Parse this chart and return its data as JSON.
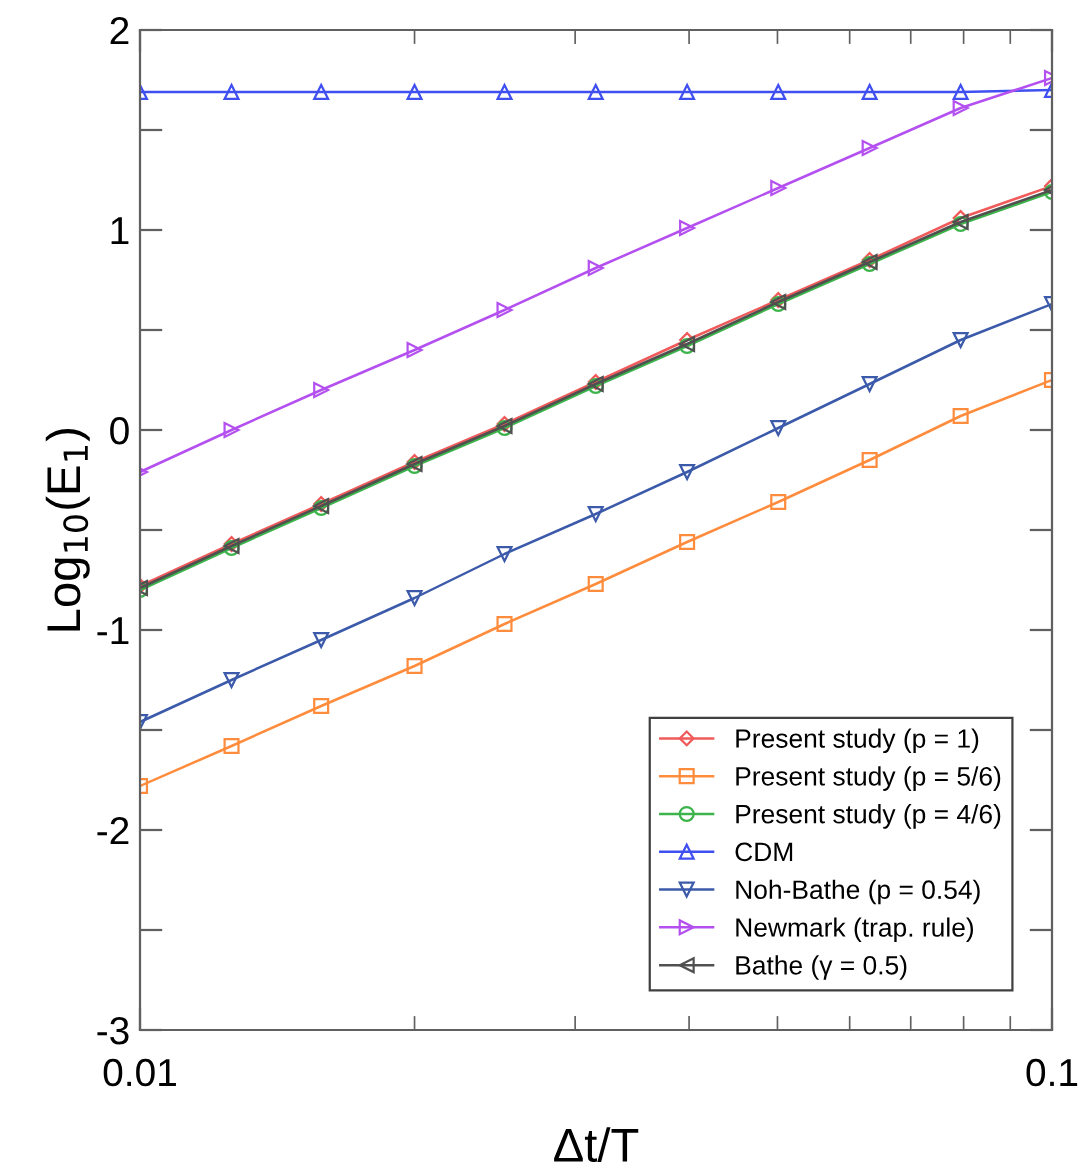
{
  "chart_data": {
    "type": "line",
    "xlabel": "Δt/T",
    "ylabel": "Log$_{10}$(E$_{1}$)",
    "x": [
      0.01,
      0.0126,
      0.0158,
      0.02,
      0.0251,
      0.0316,
      0.0398,
      0.0501,
      0.0631,
      0.0794,
      0.1
    ],
    "log": "x",
    "xlim": [
      0.01,
      0.1
    ],
    "xticks": [
      0.01,
      0.1
    ],
    "ylim": [
      -3,
      2
    ],
    "yticks": [
      {
        "value": -3,
        "label": "-3"
      },
      {
        "value": -2.5,
        "label": null
      },
      {
        "value": -2,
        "label": "-2"
      },
      {
        "value": -1.5,
        "label": null
      },
      {
        "value": -1,
        "label": "-1"
      },
      {
        "value": -0.5,
        "label": null
      },
      0,
      {
        "value": 0.5,
        "label": null
      },
      1,
      {
        "value": 1.5,
        "label": null
      },
      2
    ],
    "grid": false,
    "legend": "bottom right",
    "line_style": "solid",
    "series": [
      {
        "name": "Present study (p = 1)",
        "color": "#f05a5a",
        "marker": "diamond",
        "values": [
          -0.78,
          -0.57,
          -0.37,
          -0.16,
          0.03,
          0.24,
          0.45,
          0.65,
          0.85,
          1.06,
          1.22
        ]
      },
      {
        "name": "Present study (p = 5/6)",
        "color": "#ff8c3c",
        "marker": "square",
        "values": [
          -1.78,
          -1.58,
          -1.38,
          -1.18,
          -0.97,
          -0.77,
          -0.56,
          -0.36,
          -0.15,
          0.07,
          0.25
        ]
      },
      {
        "name": "Present study (p = 4/6)",
        "color": "#3cb44b",
        "marker": "circle",
        "values": [
          -0.8,
          -0.59,
          -0.39,
          -0.18,
          0.01,
          0.22,
          0.42,
          0.63,
          0.83,
          1.03,
          1.19
        ]
      },
      {
        "name": "CDM",
        "color": "#4050f0",
        "marker": "triangle",
        "values": [
          1.69,
          1.69,
          1.69,
          1.69,
          1.69,
          1.69,
          1.69,
          1.69,
          1.69,
          1.69,
          1.7
        ]
      },
      {
        "name": "Noh-Bathe (p = 0.54)",
        "color": "#3c5aaa",
        "marker": "triangle_down",
        "values": [
          -1.46,
          -1.25,
          -1.05,
          -0.84,
          -0.62,
          -0.42,
          -0.21,
          0.01,
          0.23,
          0.45,
          0.63
        ]
      },
      {
        "name": "Newmark (trap. rule)",
        "color": "#b450f0",
        "marker": "triangle_right",
        "values": [
          -0.21,
          0.0,
          0.2,
          0.4,
          0.6,
          0.81,
          1.01,
          1.21,
          1.41,
          1.61,
          1.76
        ]
      },
      {
        "name": "Bathe (γ = 0.5)",
        "color": "#505050",
        "marker": "triangle_left",
        "values": [
          -0.79,
          -0.58,
          -0.38,
          -0.17,
          0.02,
          0.23,
          0.43,
          0.64,
          0.84,
          1.04,
          1.2
        ]
      }
    ]
  }
}
